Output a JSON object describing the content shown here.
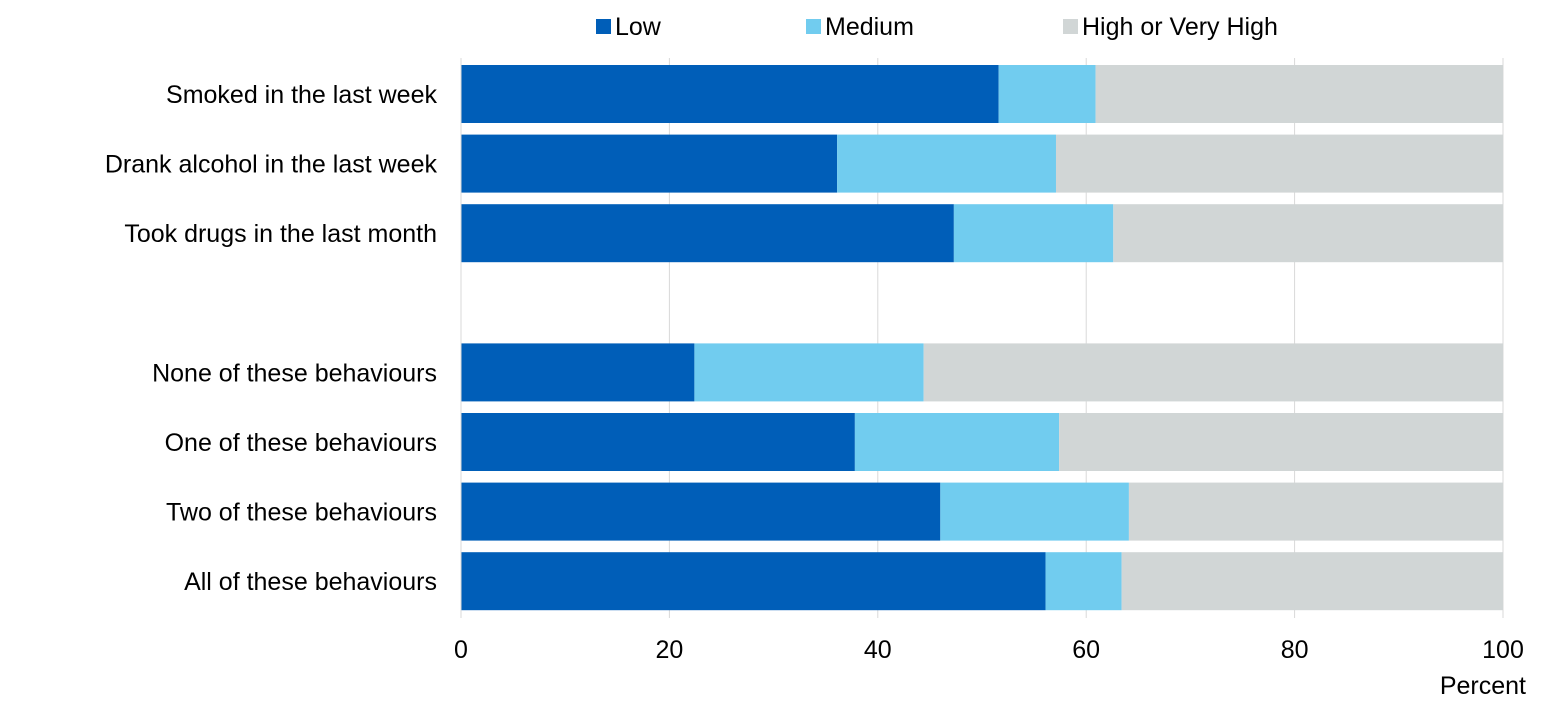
{
  "chart_data": {
    "type": "bar",
    "orientation": "horizontal",
    "stacked": true,
    "categories": [
      "Smoked in the last week",
      "Drank alcohol in the last week",
      "Took drugs in the last month",
      "",
      "None of these behaviours",
      "One of these behaviours",
      "Two of these behaviours",
      "All of these behaviours"
    ],
    "series": [
      {
        "name": "Low",
        "color": "#005EB8",
        "values": [
          51.6,
          36.1,
          47.3,
          null,
          22.4,
          37.8,
          46.0,
          56.1
        ]
      },
      {
        "name": "Medium",
        "color": "#71CCEF",
        "values": [
          9.3,
          21.0,
          15.3,
          null,
          22.0,
          19.6,
          18.1,
          7.3
        ]
      },
      {
        "name": "High or Very High",
        "color": "#D1D6D6",
        "values": [
          39.1,
          42.9,
          37.4,
          null,
          55.6,
          42.6,
          35.9,
          36.6
        ]
      }
    ],
    "xlim": [
      0,
      100
    ],
    "xticks": [
      0,
      20,
      40,
      60,
      80,
      100
    ],
    "xlabel": "Percent",
    "title": "",
    "ylabel": "",
    "grid": "vertical",
    "legend_position": "top"
  }
}
